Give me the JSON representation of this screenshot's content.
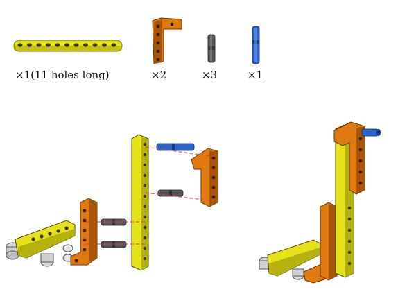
{
  "parts": [
    {
      "name": "yellow-beam-11",
      "qty_label": "×1(11 holes long)",
      "color": "#e6e21a"
    },
    {
      "name": "orange-l-beam",
      "qty_label": "×2",
      "color": "#e07a10"
    },
    {
      "name": "gray-pin",
      "qty_label": "×3",
      "color": "#555555"
    },
    {
      "name": "blue-axle-pin",
      "qty_label": "×1",
      "color": "#2a63c9"
    }
  ],
  "colors": {
    "yellow": "#e6e21a",
    "yellow_dark": "#b5b20e",
    "orange": "#e07a10",
    "orange_dark": "#a85505",
    "gray_pin": "#555555",
    "blue_pin": "#2a63c9",
    "guide_line": "#e23a3a",
    "light_gray": "#d9d9d9"
  }
}
